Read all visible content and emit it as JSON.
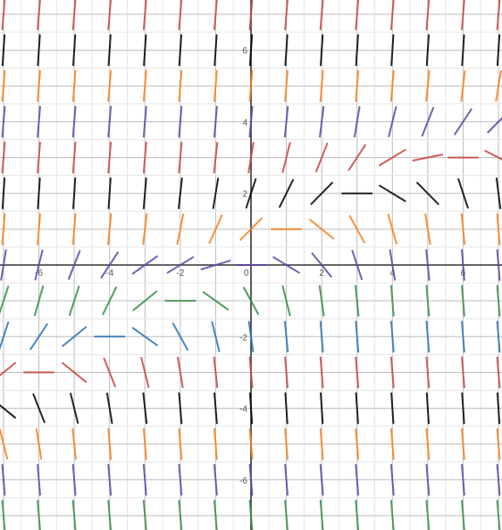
{
  "chart_data": {
    "type": "slope-field",
    "title": "",
    "xlabel": "",
    "ylabel": "",
    "xlim": [
      -7.1,
      7.1
    ],
    "ylim": [
      -7.4,
      7.4
    ],
    "grid": true,
    "minor_grid_step": 0.5,
    "major_grid_step": 1,
    "field_step": 1,
    "row_sample_y": [
      7,
      6,
      5,
      4,
      3,
      2,
      1,
      0,
      -1,
      -2,
      -3,
      -4,
      -5,
      -6,
      -7
    ],
    "column_sample_x": [
      -7,
      -6,
      -5,
      -4,
      -3,
      -2,
      -1,
      0,
      1,
      2,
      3,
      4,
      5,
      6,
      7
    ],
    "slopes_by_row": [
      [
        12,
        12,
        12,
        12,
        12,
        12,
        12,
        12,
        12,
        12,
        12,
        12,
        12,
        12,
        12
      ],
      [
        15,
        15,
        15,
        15,
        15,
        15,
        15,
        15,
        15,
        15,
        15,
        15,
        15,
        15,
        15
      ],
      [
        12,
        12,
        12,
        12,
        12,
        12,
        12,
        12,
        12,
        12,
        12,
        11,
        10,
        8,
        6
      ],
      [
        12,
        12,
        12,
        12,
        12,
        12,
        12,
        11,
        10,
        8,
        6,
        4,
        2.5,
        1.5,
        1
      ],
      [
        12,
        12,
        12,
        12,
        12,
        11,
        9,
        6,
        4,
        2.5,
        1.5,
        0.6,
        0.2,
        0,
        -0.5
      ],
      [
        15,
        15,
        15,
        15,
        12,
        9,
        6,
        3,
        2,
        1,
        0,
        -0.6,
        -1,
        -3,
        -8
      ],
      [
        12,
        12,
        12,
        10,
        8,
        5,
        2.2,
        1,
        0,
        -0.8,
        -1.8,
        -3.5,
        -6,
        -10,
        -12
      ],
      [
        6,
        4,
        2.5,
        1.5,
        0.7,
        0.6,
        0.3,
        0,
        -0.6,
        -1.2,
        -3,
        -6,
        -10,
        -12,
        -12
      ],
      [
        3,
        3.5,
        3,
        2,
        0.8,
        0,
        -0.7,
        -1.8,
        -4,
        -7,
        -10,
        -12,
        -12,
        -12,
        -12
      ],
      [
        3,
        1.5,
        0.8,
        0,
        -0.7,
        -1.8,
        -4,
        -7,
        -10,
        -12,
        -12,
        -12,
        -12,
        -12,
        -12
      ],
      [
        0.8,
        0,
        -0.8,
        -2.5,
        -4,
        -6,
        -9,
        -12,
        -12,
        -12,
        -12,
        -12,
        -12,
        -12,
        -12
      ],
      [
        -0.8,
        -2.5,
        -4,
        -6,
        -9,
        -12,
        -12,
        -15,
        -15,
        -15,
        -15,
        -15,
        -15,
        -15,
        -15
      ],
      [
        -4,
        -6,
        -9,
        -12,
        -12,
        -12,
        -12,
        -12,
        -12,
        -12,
        -12,
        -12,
        -12,
        -12,
        -12
      ],
      [
        -12,
        -12,
        -12,
        -12,
        -12,
        -12,
        -12,
        -12,
        -12,
        -12,
        -12,
        -12,
        -12,
        -12,
        -12
      ],
      [
        -12,
        -12,
        -12,
        -12,
        -12,
        -12,
        -12,
        -12,
        -12,
        -12,
        -12,
        -12,
        -12,
        -12,
        -12
      ]
    ],
    "row_colors": [
      "#c74440",
      "#000000",
      "#fa7e19",
      "#6042a6",
      "#c74440",
      "#000000",
      "#fa7e19",
      "#6042a6",
      "#388c46",
      "#2d70b3",
      "#c74440",
      "#000000",
      "#fa7e19",
      "#6042a6",
      "#388c46"
    ],
    "x_tick_labels": [
      {
        "value": -6,
        "label": "-6"
      },
      {
        "value": -4,
        "label": "-4"
      },
      {
        "value": -2,
        "label": "-2"
      },
      {
        "value": 0,
        "label": "0"
      },
      {
        "value": 2,
        "label": "2"
      },
      {
        "value": 4,
        "label": "4"
      },
      {
        "value": 6,
        "label": "6"
      }
    ],
    "y_tick_labels": [
      {
        "value": 6,
        "label": "6"
      },
      {
        "value": 4,
        "label": "4"
      },
      {
        "value": 2,
        "label": "2"
      },
      {
        "value": -2,
        "label": "-2"
      },
      {
        "value": -4,
        "label": "-4"
      },
      {
        "value": -6,
        "label": "-6"
      }
    ]
  }
}
